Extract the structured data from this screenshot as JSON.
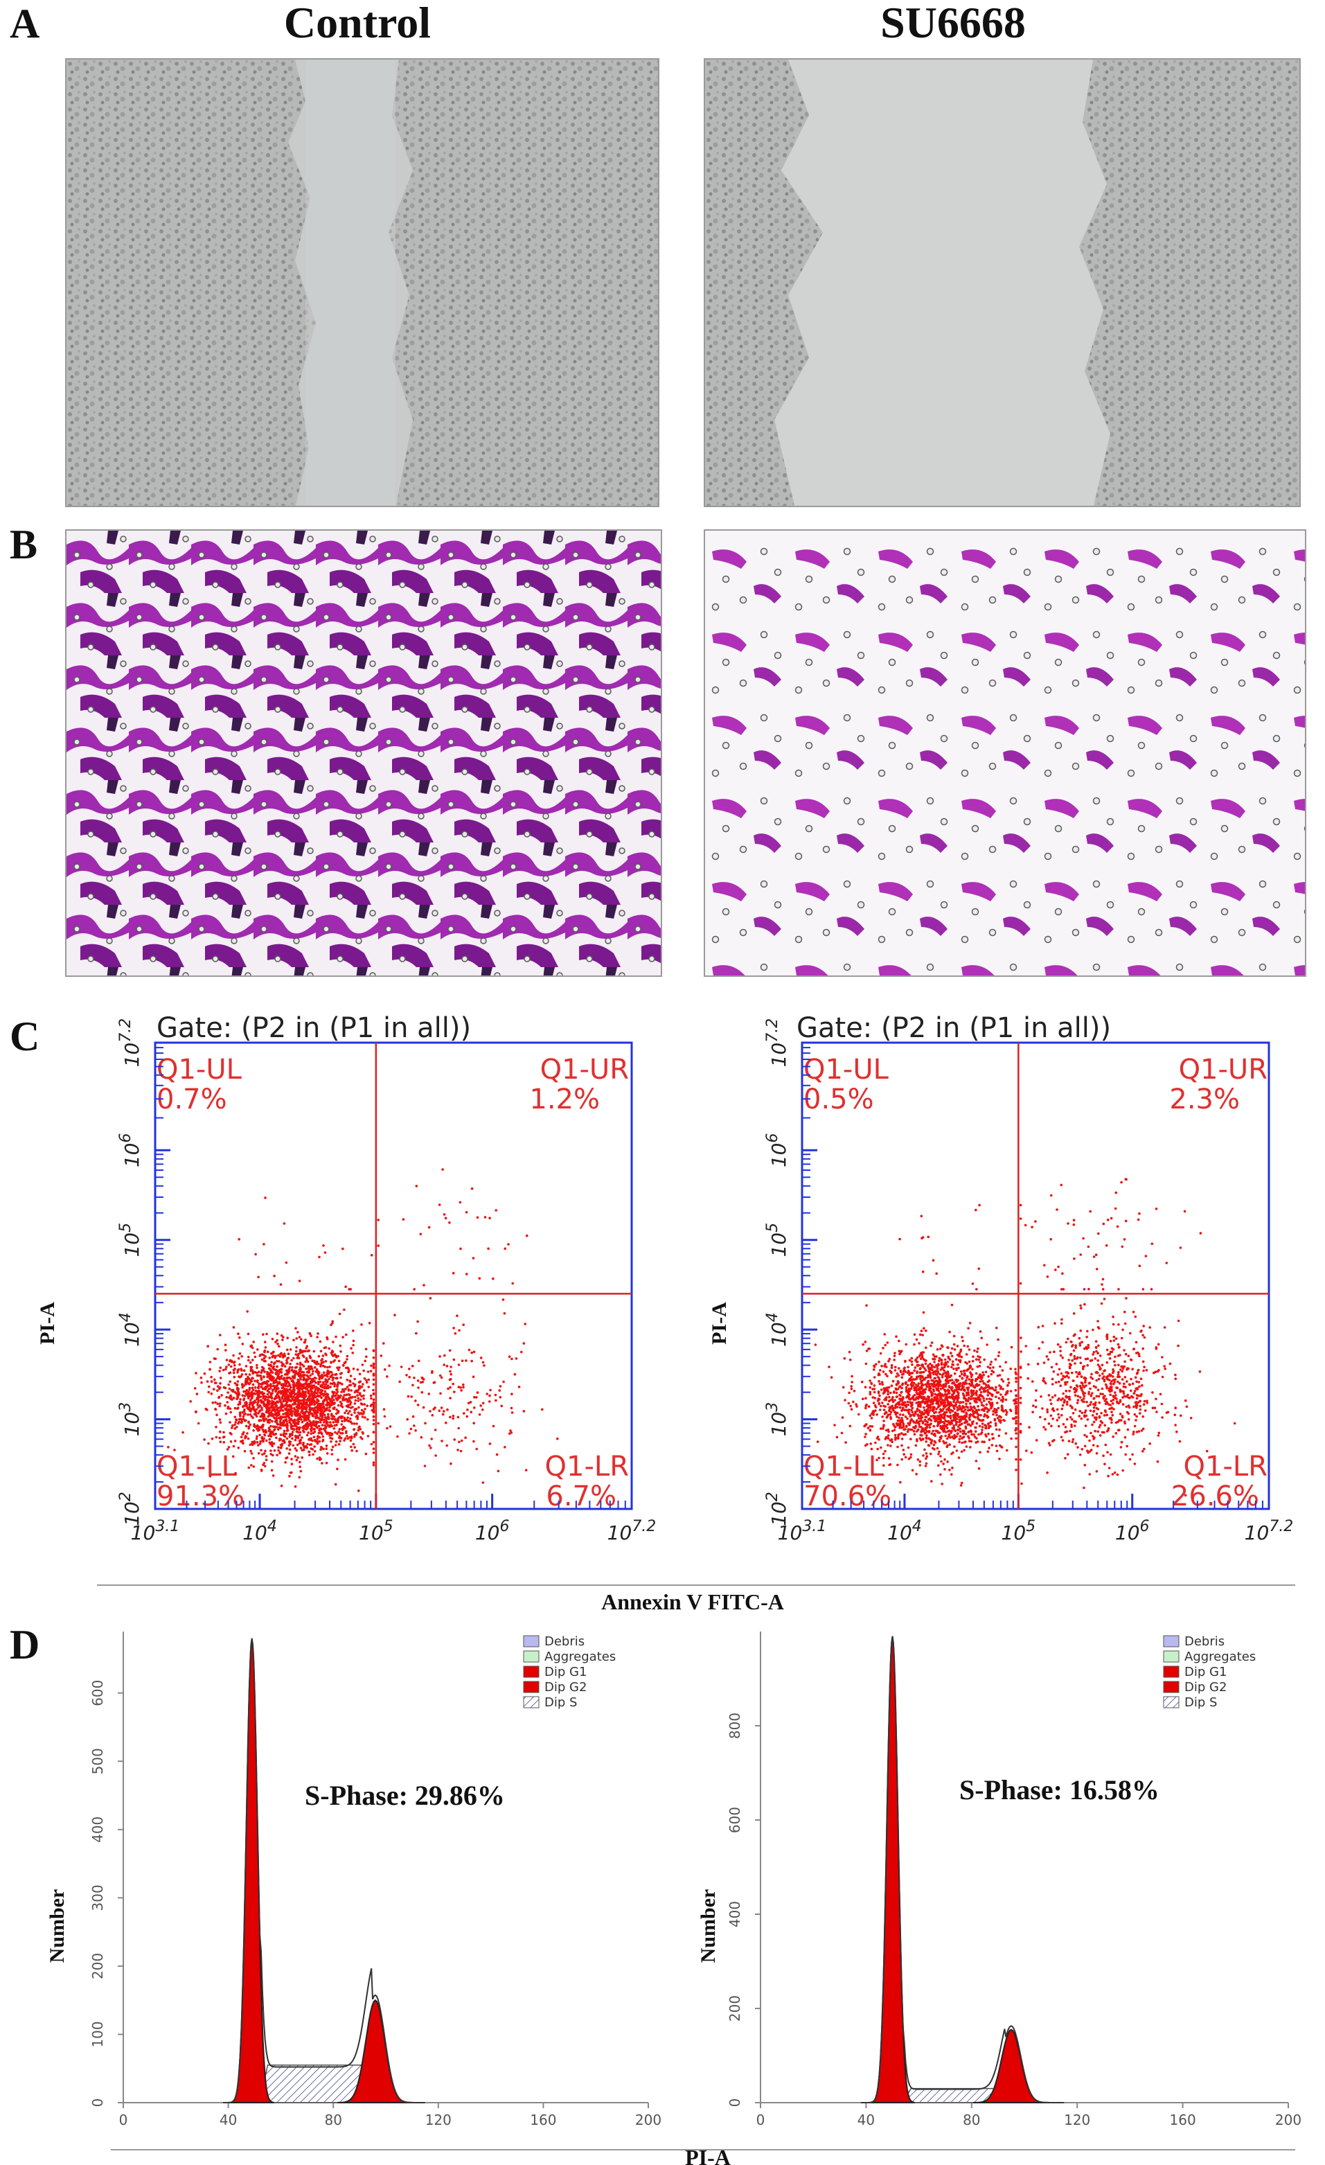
{
  "panels": {
    "a": {
      "letter": "A",
      "left_header": "Control",
      "right_header": "SU6668"
    },
    "b": {
      "letter": "B"
    },
    "c": {
      "letter": "C"
    },
    "d": {
      "letter": "D"
    }
  },
  "flow_plots": [
    {
      "gate_label": "Gate: (P2 in (P1 in all))",
      "quadrants": {
        "UL": {
          "name": "Q1-UL",
          "pct": "0.7%"
        },
        "UR": {
          "name": "Q1-UR",
          "pct": "1.2%"
        },
        "LL": {
          "name": "Q1-LL",
          "pct": "91.3%"
        },
        "LR": {
          "name": "Q1-LR",
          "pct": "6.7%"
        }
      },
      "ylabel": "PI-A"
    },
    {
      "gate_label": "Gate: (P2 in (P1 in all))",
      "quadrants": {
        "UL": {
          "name": "Q1-UL",
          "pct": "0.5%"
        },
        "UR": {
          "name": "Q1-UR",
          "pct": "2.3%"
        },
        "LL": {
          "name": "Q1-LL",
          "pct": "70.6%"
        },
        "LR": {
          "name": "Q1-LR",
          "pct": "26.6%"
        }
      },
      "ylabel": "PI-A"
    }
  ],
  "flow_axis": {
    "xlabel": "Annexin V FITC-A",
    "x_ticks": [
      "10^3.1",
      "10^4",
      "10^5",
      "10^6",
      "10^7.2"
    ],
    "y_ticks": [
      "10^2",
      "10^3",
      "10^4",
      "10^5",
      "10^6",
      "10^7.2"
    ]
  },
  "cell_cycle": {
    "xlabel": "PI-A",
    "legend": [
      "Debris",
      "Aggregates",
      "Dip G1",
      "Dip G2",
      "Dip S"
    ],
    "legend_colors": [
      "#b9b9ee",
      "#c8f0c8",
      "#e00000",
      "#e00000",
      "#ffffff"
    ],
    "left": {
      "ylabel": "Number",
      "s_phase": "S-Phase: 29.86%"
    },
    "right": {
      "ylabel": "Number",
      "s_phase": "S-Phase: 16.58%"
    }
  },
  "chart_data": [
    {
      "type": "scatter",
      "title": "Gate: (P2 in (P1 in all))",
      "xlabel": "Annexin V FITC-A",
      "ylabel": "PI-A",
      "scale": "log",
      "xlim": [
        3.1,
        7.2
      ],
      "ylim": [
        2,
        7.2
      ],
      "quadrant_gate": {
        "x": 5.0,
        "y": 4.4
      },
      "series": [
        {
          "values": {
            "UL": 0.7,
            "UR": 1.2,
            "LL": 91.3,
            "LR": 6.7
          }
        }
      ]
    },
    {
      "type": "scatter",
      "title": "Gate: (P2 in (P1 in all))",
      "xlabel": "Annexin V FITC-A",
      "ylabel": "PI-A",
      "scale": "log",
      "xlim": [
        3.1,
        7.2
      ],
      "ylim": [
        2,
        7.2
      ],
      "quadrant_gate": {
        "x": 5.0,
        "y": 4.4
      },
      "series": [
        {
          "values": {
            "UL": 0.5,
            "UR": 2.3,
            "LL": 70.6,
            "LR": 26.6
          }
        }
      ]
    },
    {
      "type": "area",
      "xlabel": "PI-A",
      "ylabel": "Number",
      "xlim": [
        0,
        200
      ],
      "ylim": [
        0,
        690
      ],
      "x_ticks": [
        0,
        40,
        80,
        120,
        160,
        200
      ],
      "y_ticks": [
        0,
        100,
        200,
        300,
        400,
        500,
        600
      ],
      "annotation": "S-Phase: 29.86%",
      "series": [
        {
          "name": "Dip G1",
          "peak_x": 49,
          "peak_y": 680
        },
        {
          "name": "Dip G2",
          "peak_x": 96,
          "peak_y": 150
        },
        {
          "name": "Dip S",
          "range_x": [
            55,
            92
          ],
          "level_y": 55
        }
      ]
    },
    {
      "type": "area",
      "xlabel": "PI-A",
      "ylabel": "Number",
      "xlim": [
        0,
        200
      ],
      "ylim": [
        0,
        1000
      ],
      "x_ticks": [
        0,
        40,
        80,
        120,
        160,
        200
      ],
      "y_ticks": [
        0,
        200,
        400,
        600,
        800
      ],
      "annotation": "S-Phase: 16.58%",
      "series": [
        {
          "name": "Dip G1",
          "peak_x": 50,
          "peak_y": 990
        },
        {
          "name": "Dip G2",
          "peak_x": 95,
          "peak_y": 155
        },
        {
          "name": "Dip S",
          "range_x": [
            57,
            90
          ],
          "level_y": 30
        }
      ]
    }
  ]
}
